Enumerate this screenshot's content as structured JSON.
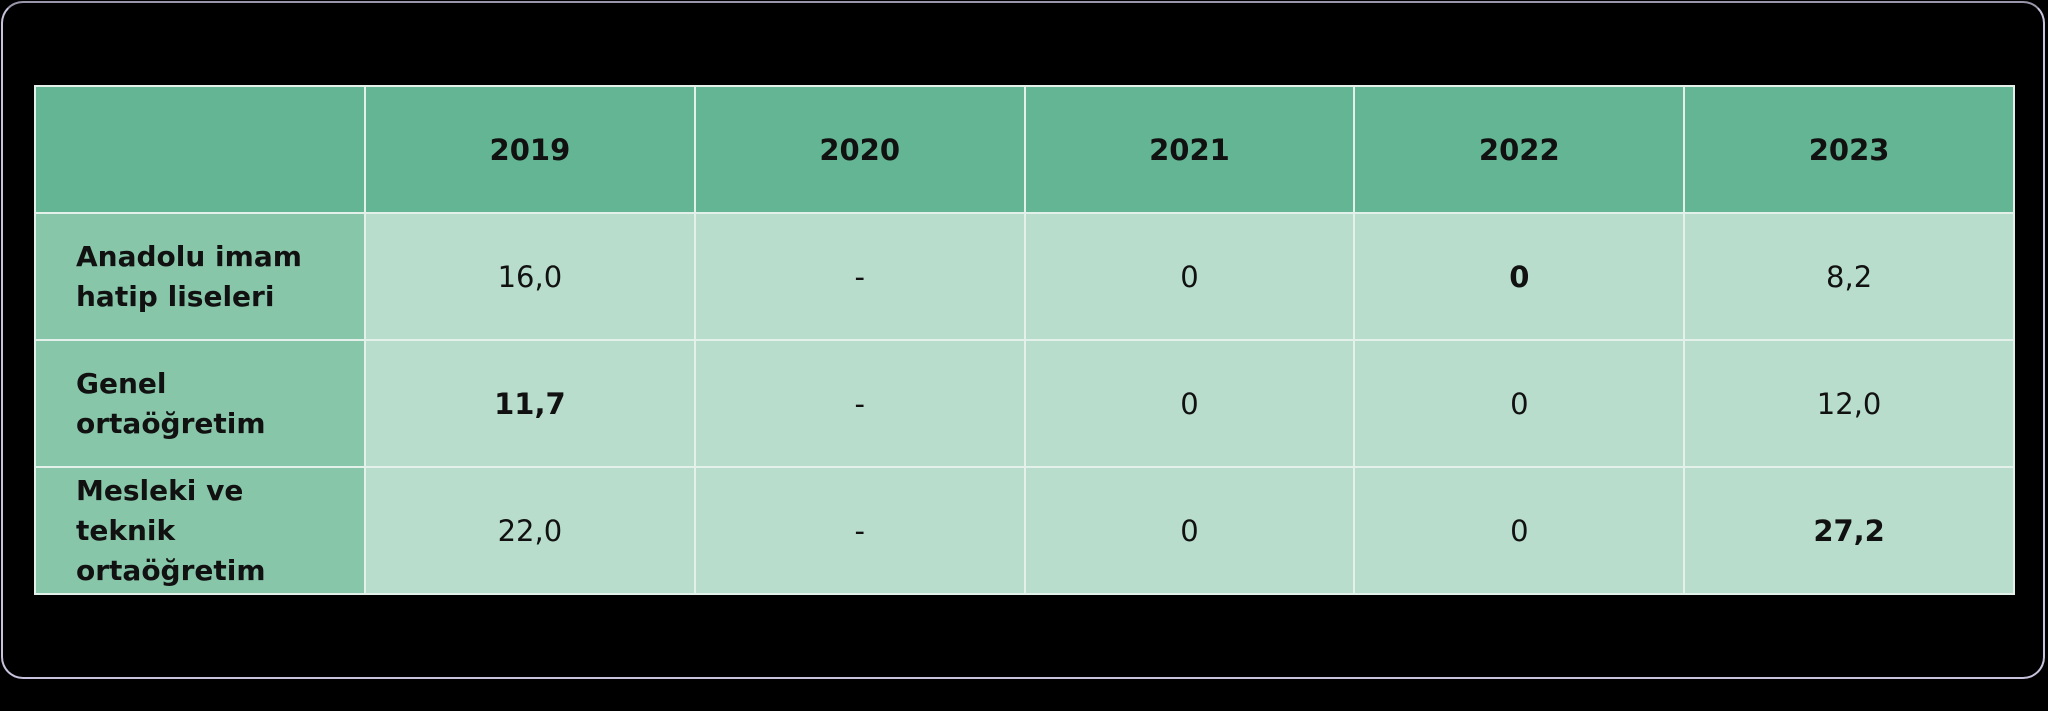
{
  "table": {
    "columns": [
      "2019",
      "2020",
      "2021",
      "2022",
      "2023"
    ],
    "rows": [
      {
        "label": "Anadolu imam hatip liseleri",
        "cells": [
          "16,0",
          "-",
          "0",
          "0",
          "8,2"
        ]
      },
      {
        "label": "Genel ortaöğretim",
        "cells": [
          "11,7",
          "-",
          "0",
          "0",
          "12,0"
        ]
      },
      {
        "label": "Mesleki ve teknik ortaöğretim",
        "cells": [
          "22,0",
          "-",
          "0",
          "0",
          "27,2"
        ]
      }
    ],
    "bold_cells": [
      [
        0,
        3
      ],
      [
        1,
        0
      ],
      [
        2,
        4
      ]
    ]
  }
}
